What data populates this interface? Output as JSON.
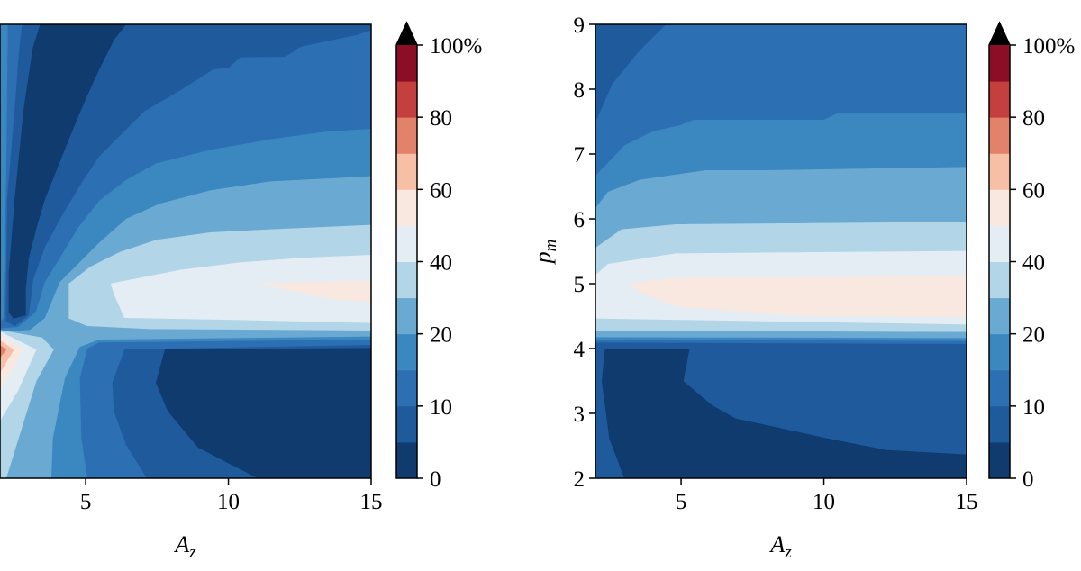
{
  "chart_data": {
    "type": "contour",
    "levels": [
      0,
      5,
      10,
      15,
      20,
      30,
      40,
      50,
      60,
      70,
      80,
      90,
      100
    ],
    "colors": [
      "#0f3b6e",
      "#1f5a9c",
      "#2c6fb2",
      "#3b87c0",
      "#6aaad2",
      "#b3d5e8",
      "#e4edf4",
      "#f9e8df",
      "#f7bfa6",
      "#e3826a",
      "#c4403e",
      "#8b0d26"
    ],
    "extend": "max",
    "extend_color": "#000000",
    "colorbar_ticks": [
      {
        "value": 0,
        "label": "0"
      },
      {
        "value": 10,
        "label": "10"
      },
      {
        "value": 20,
        "label": "20"
      },
      {
        "value": 40,
        "label": "40"
      },
      {
        "value": 60,
        "label": "60"
      },
      {
        "value": 80,
        "label": "80"
      },
      {
        "value": 100,
        "label": "100%"
      }
    ],
    "panels": [
      {
        "name": "left",
        "xlabel_base": "A",
        "xlabel_sub": "z",
        "ylabel_base": "",
        "ylabel_sub": "",
        "xlim": [
          2,
          15
        ],
        "ylim": [
          2,
          9
        ],
        "xticks": [
          {
            "value": 5,
            "label": "5"
          },
          {
            "value": 10,
            "label": "10"
          },
          {
            "value": 15,
            "label": "15"
          }
        ],
        "yticks": []
      },
      {
        "name": "right",
        "xlabel_base": "A",
        "xlabel_sub": "z",
        "ylabel_base": "p",
        "ylabel_sub": "m",
        "xlim": [
          2,
          15
        ],
        "ylim": [
          2,
          9
        ],
        "xticks": [
          {
            "value": 5,
            "label": "5"
          },
          {
            "value": 10,
            "label": "10"
          },
          {
            "value": 15,
            "label": "15"
          }
        ],
        "yticks": [
          {
            "value": 2,
            "label": "2"
          },
          {
            "value": 3,
            "label": "3"
          },
          {
            "value": 4,
            "label": "4"
          },
          {
            "value": 5,
            "label": "5"
          },
          {
            "value": 6,
            "label": "6"
          },
          {
            "value": 7,
            "label": "7"
          },
          {
            "value": 8,
            "label": "8"
          },
          {
            "value": 9,
            "label": "9"
          }
        ]
      }
    ]
  }
}
